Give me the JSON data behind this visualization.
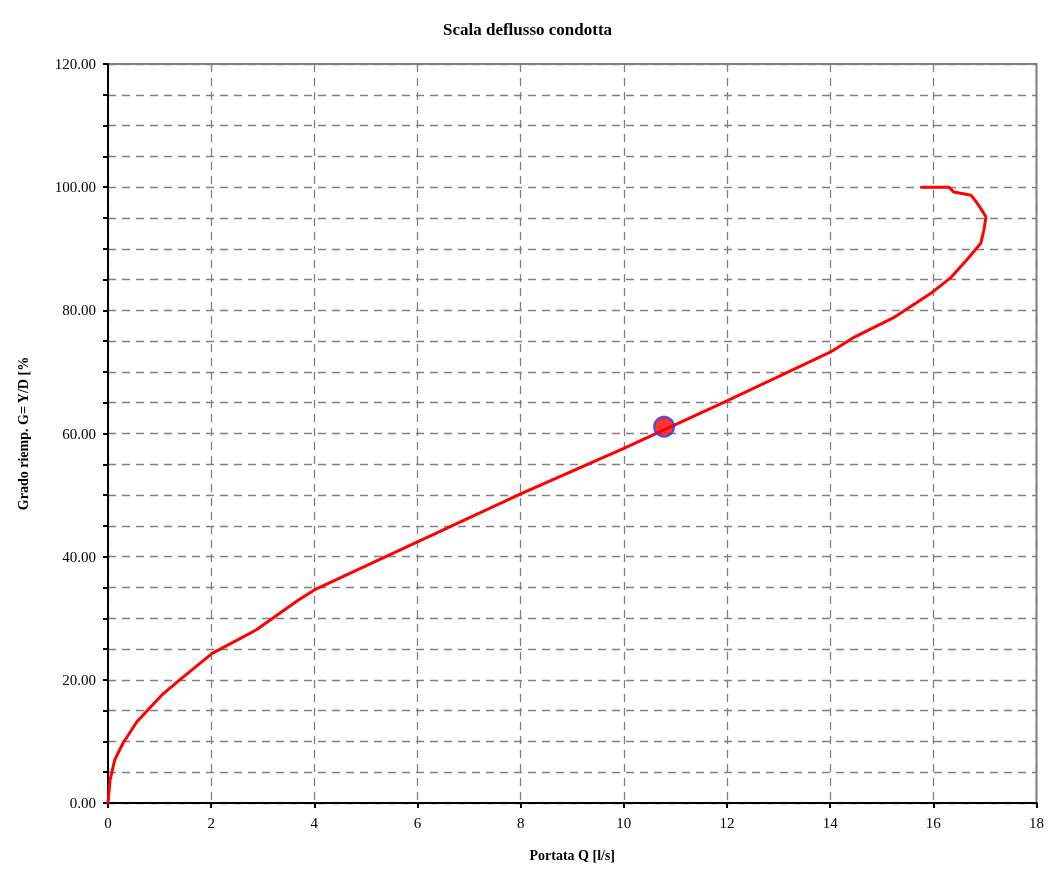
{
  "chart_data": {
    "type": "line",
    "title": "Scala deflusso condotta",
    "xlabel": "Portata Q [l/s]",
    "ylabel": "Grado riemp. G= Y/D [%",
    "xlim": [
      0,
      18
    ],
    "xticks": [
      0,
      2,
      4,
      6,
      8,
      10,
      12,
      14,
      16,
      18
    ],
    "ylim": [
      0,
      120
    ],
    "yticks": [
      {
        "value": 0,
        "label": "0.00"
      },
      {
        "value": 5,
        "label": null
      },
      {
        "value": 10,
        "label": null
      },
      {
        "value": 15,
        "label": null
      },
      {
        "value": 20,
        "label": "20.00"
      },
      {
        "value": 25,
        "label": null
      },
      {
        "value": 30,
        "label": null
      },
      {
        "value": 35,
        "label": null
      },
      {
        "value": 40,
        "label": "40.00"
      },
      {
        "value": 45,
        "label": null
      },
      {
        "value": 50,
        "label": null
      },
      {
        "value": 55,
        "label": null
      },
      {
        "value": 60,
        "label": "60.00"
      },
      {
        "value": 65,
        "label": null
      },
      {
        "value": 70,
        "label": null
      },
      {
        "value": 75,
        "label": null
      },
      {
        "value": 80,
        "label": "80.00"
      },
      {
        "value": 85,
        "label": null
      },
      {
        "value": 90,
        "label": null
      },
      {
        "value": 95,
        "label": null
      },
      {
        "value": 100,
        "label": "100.00"
      },
      {
        "value": 105,
        "label": null
      },
      {
        "value": 110,
        "label": null
      },
      {
        "value": 115,
        "label": null
      },
      {
        "value": 120,
        "label": "120.00"
      }
    ],
    "grid": true,
    "marker": "none",
    "line_style": "solid",
    "series": [
      {
        "type": "line",
        "color": "#ff0000",
        "x": [
          0,
          0.04,
          0.13,
          0.29,
          0.56,
          1.04,
          1.39,
          2.02,
          2.87,
          3.7,
          4,
          6,
          8,
          10,
          12,
          14,
          14.48,
          15.25,
          15.96,
          16.35,
          16.65,
          16.92,
          16.98,
          17.02,
          16.85,
          16.73,
          16.4,
          16.3,
          15.77
        ],
        "values": [
          0,
          3.7,
          7,
          9.7,
          13.2,
          17.5,
          20,
          24.3,
          28.1,
          33,
          34.6,
          42.4,
          50.2,
          57.6,
          65.3,
          73.2,
          75.7,
          78.9,
          82.8,
          85.4,
          88.2,
          90.9,
          93,
          95.2,
          97.4,
          98.7,
          99.2,
          100,
          100
        ]
      },
      {
        "type": "scatter",
        "color": "#ff0000",
        "marker": "circle",
        "x": [
          10.78
        ],
        "values": [
          61.1
        ]
      }
    ]
  }
}
